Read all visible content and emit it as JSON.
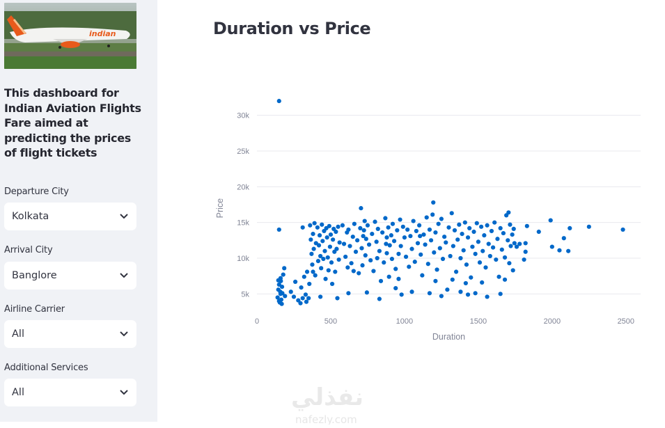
{
  "sidebar": {
    "intro_text": "This dashboard for Indian Aviation Flights Fare aimed at predicting the prices of flight tickets",
    "hero_logo_text": "indian",
    "filters": [
      {
        "label": "Departure City",
        "value": "Kolkata"
      },
      {
        "label": "Arrival City",
        "value": "Banglore"
      },
      {
        "label": "Airline Carrier",
        "value": "All"
      },
      {
        "label": "Additional Services",
        "value": "All"
      }
    ]
  },
  "main": {
    "title": "Duration vs Price"
  },
  "chart_data": {
    "type": "scatter",
    "xlabel": "Duration",
    "ylabel": "Price",
    "xlim": [
      0,
      2600
    ],
    "ylim": [
      2500,
      32500
    ],
    "x_ticks": [
      0,
      500,
      1000,
      1500,
      2000,
      2500
    ],
    "x_tick_labels": [
      "0",
      "500",
      "1000",
      "1500",
      "2000",
      "2500"
    ],
    "y_ticks": [
      5000,
      10000,
      15000,
      20000,
      25000,
      30000
    ],
    "y_tick_labels": [
      "5k",
      "10k",
      "15k",
      "20k",
      "25k",
      "30k"
    ],
    "grid": "horizontal",
    "marker_color": "#0068c9",
    "points": [
      [
        150,
        32000
      ],
      [
        150,
        14000
      ],
      [
        2480,
        14000
      ],
      [
        2250,
        14400
      ],
      [
        2120,
        14200
      ],
      [
        2110,
        11000
      ],
      [
        2080,
        12800
      ],
      [
        2050,
        11100
      ],
      [
        2000,
        11600
      ],
      [
        1990,
        15300
      ],
      [
        1910,
        13700
      ],
      [
        1830,
        14500
      ],
      [
        1820,
        12100
      ],
      [
        1820,
        10900
      ],
      [
        1810,
        9800
      ],
      [
        1780,
        12000
      ],
      [
        1760,
        11600
      ],
      [
        140,
        4500
      ],
      [
        145,
        5600
      ],
      [
        150,
        6300
      ],
      [
        155,
        3800
      ],
      [
        160,
        5000
      ],
      [
        160,
        7200
      ],
      [
        165,
        4200
      ],
      [
        170,
        6000
      ],
      [
        150,
        4000
      ],
      [
        158,
        5300
      ],
      [
        162,
        6800
      ],
      [
        168,
        3600
      ],
      [
        172,
        5100
      ],
      [
        178,
        7700
      ],
      [
        185,
        8600
      ],
      [
        190,
        4700
      ],
      [
        145,
        6900
      ],
      [
        230,
        5300
      ],
      [
        250,
        4600
      ],
      [
        260,
        6700
      ],
      [
        280,
        4100
      ],
      [
        295,
        3700
      ],
      [
        300,
        5900
      ],
      [
        310,
        4400
      ],
      [
        320,
        7400
      ],
      [
        330,
        4900
      ],
      [
        335,
        3900
      ],
      [
        340,
        8100
      ],
      [
        350,
        4400
      ],
      [
        355,
        6400
      ],
      [
        360,
        14600
      ],
      [
        365,
        12600
      ],
      [
        370,
        10600
      ],
      [
        375,
        9100
      ],
      [
        380,
        13400
      ],
      [
        385,
        11300
      ],
      [
        390,
        14900
      ],
      [
        395,
        7600
      ],
      [
        400,
        12100
      ],
      [
        410,
        14300
      ],
      [
        415,
        9600
      ],
      [
        420,
        11800
      ],
      [
        425,
        13200
      ],
      [
        430,
        10300
      ],
      [
        435,
        8600
      ],
      [
        440,
        14700
      ],
      [
        445,
        12400
      ],
      [
        450,
        9900
      ],
      [
        455,
        13800
      ],
      [
        460,
        11000
      ],
      [
        465,
        7100
      ],
      [
        470,
        14200
      ],
      [
        475,
        12900
      ],
      [
        480,
        10100
      ],
      [
        485,
        8300
      ],
      [
        490,
        14500
      ],
      [
        495,
        11600
      ],
      [
        500,
        13300
      ],
      [
        505,
        9400
      ],
      [
        510,
        6400
      ],
      [
        515,
        12600
      ],
      [
        520,
        14100
      ],
      [
        525,
        10900
      ],
      [
        530,
        8100
      ],
      [
        535,
        13700
      ],
      [
        540,
        11300
      ],
      [
        545,
        4400
      ],
      [
        550,
        14400
      ],
      [
        555,
        9800
      ],
      [
        560,
        12200
      ],
      [
        580,
        14600
      ],
      [
        590,
        12000
      ],
      [
        600,
        10200
      ],
      [
        610,
        13600
      ],
      [
        615,
        8700
      ],
      [
        620,
        14000
      ],
      [
        630,
        11700
      ],
      [
        640,
        9300
      ],
      [
        650,
        13000
      ],
      [
        660,
        14800
      ],
      [
        670,
        10900
      ],
      [
        680,
        12500
      ],
      [
        690,
        7900
      ],
      [
        700,
        14200
      ],
      [
        705,
        17000
      ],
      [
        710,
        11400
      ],
      [
        715,
        9000
      ],
      [
        720,
        13100
      ],
      [
        730,
        15200
      ],
      [
        735,
        10400
      ],
      [
        740,
        12700
      ],
      [
        745,
        5200
      ],
      [
        750,
        14600
      ],
      [
        760,
        11900
      ],
      [
        770,
        9700
      ],
      [
        780,
        13400
      ],
      [
        790,
        8200
      ],
      [
        800,
        15100
      ],
      [
        810,
        12300
      ],
      [
        815,
        10000
      ],
      [
        820,
        14100
      ],
      [
        830,
        11000
      ],
      [
        840,
        6800
      ],
      [
        850,
        13600
      ],
      [
        860,
        9400
      ],
      [
        870,
        15600
      ],
      [
        875,
        12000
      ],
      [
        880,
        10700
      ],
      [
        890,
        14300
      ],
      [
        895,
        7400
      ],
      [
        900,
        11800
      ],
      [
        910,
        13200
      ],
      [
        915,
        9900
      ],
      [
        920,
        14800
      ],
      [
        930,
        12400
      ],
      [
        940,
        8500
      ],
      [
        950,
        13900
      ],
      [
        960,
        10600
      ],
      [
        970,
        15400
      ],
      [
        975,
        11700
      ],
      [
        980,
        4900
      ],
      [
        990,
        14400
      ],
      [
        1000,
        12900
      ],
      [
        1010,
        10200
      ],
      [
        1020,
        14000
      ],
      [
        1030,
        8800
      ],
      [
        1040,
        13100
      ],
      [
        1050,
        11300
      ],
      [
        1060,
        15200
      ],
      [
        1070,
        9500
      ],
      [
        1080,
        13800
      ],
      [
        1090,
        12100
      ],
      [
        1100,
        14600
      ],
      [
        1110,
        10500
      ],
      [
        1120,
        7600
      ],
      [
        1130,
        13300
      ],
      [
        1140,
        11900
      ],
      [
        1150,
        15700
      ],
      [
        1160,
        9200
      ],
      [
        1170,
        14000
      ],
      [
        1180,
        12500
      ],
      [
        1190,
        16100
      ],
      [
        1195,
        17800
      ],
      [
        1200,
        10800
      ],
      [
        1210,
        13600
      ],
      [
        1220,
        8400
      ],
      [
        1230,
        14800
      ],
      [
        1240,
        11400
      ],
      [
        1250,
        15500
      ],
      [
        1260,
        9900
      ],
      [
        1270,
        13000
      ],
      [
        1280,
        12200
      ],
      [
        1290,
        5600
      ],
      [
        1300,
        14300
      ],
      [
        1310,
        10300
      ],
      [
        1320,
        16300
      ],
      [
        1330,
        11700
      ],
      [
        1340,
        13900
      ],
      [
        1350,
        8100
      ],
      [
        1360,
        12600
      ],
      [
        1370,
        14700
      ],
      [
        1380,
        10000
      ],
      [
        1390,
        13400
      ],
      [
        1400,
        11100
      ],
      [
        1410,
        15000
      ],
      [
        1420,
        9100
      ],
      [
        1430,
        12900
      ],
      [
        1440,
        14200
      ],
      [
        1450,
        7300
      ],
      [
        1460,
        11600
      ],
      [
        1470,
        13700
      ],
      [
        1480,
        10600
      ],
      [
        1490,
        14900
      ],
      [
        1500,
        12300
      ],
      [
        1510,
        9400
      ],
      [
        1520,
        14400
      ],
      [
        1530,
        11000
      ],
      [
        1540,
        13200
      ],
      [
        1550,
        8700
      ],
      [
        1560,
        14600
      ],
      [
        1570,
        12000
      ],
      [
        1580,
        10300
      ],
      [
        1590,
        13800
      ],
      [
        1600,
        11500
      ],
      [
        1610,
        15000
      ],
      [
        1620,
        9800
      ],
      [
        1630,
        12700
      ],
      [
        1640,
        7400
      ],
      [
        1650,
        14200
      ],
      [
        1660,
        11200
      ],
      [
        1670,
        13500
      ],
      [
        1680,
        10100
      ],
      [
        1690,
        16000
      ],
      [
        1700,
        12500
      ],
      [
        1705,
        16400
      ],
      [
        1710,
        9300
      ],
      [
        1715,
        14700
      ],
      [
        1720,
        11700
      ],
      [
        1730,
        13300
      ],
      [
        1735,
        8300
      ],
      [
        1740,
        14100
      ],
      [
        1745,
        12100
      ],
      [
        310,
        14300
      ],
      [
        380,
        8100
      ],
      [
        430,
        4600
      ],
      [
        620,
        5100
      ],
      [
        830,
        4300
      ],
      [
        880,
        12900
      ],
      [
        940,
        5800
      ],
      [
        1050,
        5300
      ],
      [
        1170,
        5100
      ],
      [
        1250,
        4700
      ],
      [
        1380,
        5300
      ],
      [
        1430,
        4900
      ],
      [
        1480,
        5100
      ],
      [
        1560,
        4600
      ],
      [
        1650,
        5000
      ],
      [
        725,
        13900
      ],
      [
        1105,
        13100
      ],
      [
        655,
        8200
      ],
      [
        1415,
        6500
      ],
      [
        960,
        7100
      ],
      [
        1210,
        6800
      ],
      [
        1525,
        6600
      ],
      [
        1325,
        7000
      ],
      [
        1680,
        7000
      ]
    ]
  }
}
